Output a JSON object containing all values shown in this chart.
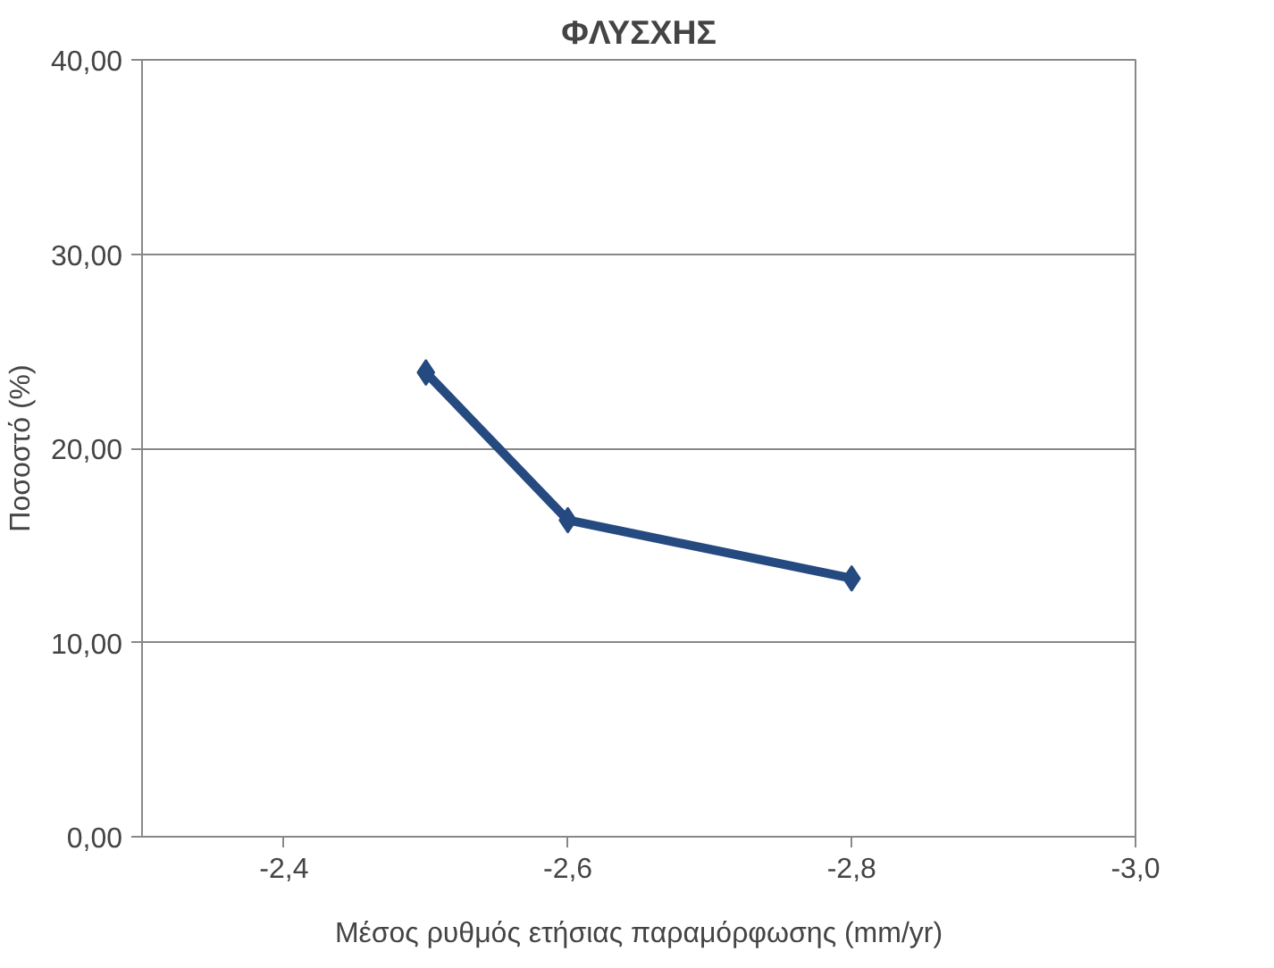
{
  "chart_data": {
    "type": "line",
    "title": "ΦΛΥΣΧΗΣ",
    "xlabel": "Μέσος ρυθμός ετήσιας παραμόρφωσης (mm/yr)",
    "ylabel": "Ποσοστό (%)",
    "x": [
      -2.5,
      -2.6,
      -2.8
    ],
    "series": [
      {
        "color": "#254a80",
        "values": [
          23.9,
          16.3,
          13.3
        ]
      }
    ],
    "xlim": [
      -2.3,
      -3.0
    ],
    "xticks": [
      {
        "value": -2.4,
        "label": "-2,4"
      },
      {
        "value": -2.6,
        "label": "-2,6"
      },
      {
        "value": -2.8,
        "label": "-2,8"
      },
      {
        "value": -3.0,
        "label": "-3,0"
      }
    ],
    "ylim": [
      0,
      40
    ],
    "yticks": [
      {
        "value": 0,
        "label": "0,00"
      },
      {
        "value": 10,
        "label": "10,00"
      },
      {
        "value": 20,
        "label": "20,00"
      },
      {
        "value": 30,
        "label": "30,00"
      },
      {
        "value": 40,
        "label": "40,00"
      }
    ],
    "grid": "y",
    "marker": "diamond",
    "line_style": "solid"
  }
}
